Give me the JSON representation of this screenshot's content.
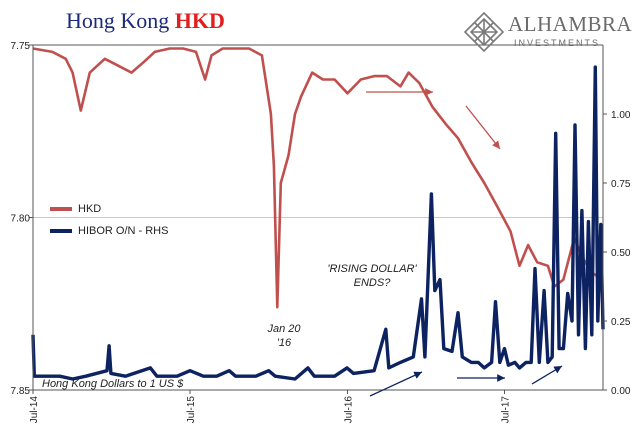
{
  "title": {
    "part1": "Hong Kong",
    "part2": "HKD"
  },
  "logo": {
    "name": "ALHAMBRA",
    "sub": "INVESTMENTS",
    "icon": "alhambra-lattice-icon"
  },
  "note": "Hong Kong Dollars to 1 US $",
  "annotations": {
    "jan20": [
      "Jan 20",
      "'16"
    ],
    "rising": [
      "'RISING DOLLAR'",
      "ENDS?"
    ]
  },
  "colors": {
    "hkd": "#c0504d",
    "hibor": "#0d2260",
    "grid": "#c8c8c8",
    "arrow_red": "#c0504d",
    "arrow_blue": "#0d2260"
  },
  "chart_data": {
    "type": "line",
    "legend": {
      "placement": "middle-left",
      "items": [
        "HKD",
        "HIBOR O/N - RHS"
      ]
    },
    "x_ticks": [
      "Jul-14",
      "Jul-15",
      "Jul-16",
      "Jul-17"
    ],
    "x_range": [
      "2014-07-01",
      "2018-02-15"
    ],
    "y_left": {
      "ticks": [
        "7.75",
        "7.80",
        "7.85"
      ],
      "range": [
        7.85,
        7.75
      ],
      "inverted": true
    },
    "y_right": {
      "ticks": [
        "0.00",
        "0.25",
        "0.50",
        "0.75",
        "1.00"
      ],
      "range": [
        0,
        1.25
      ]
    },
    "grid": "horizontal at 7.80",
    "series": [
      {
        "name": "HKD",
        "axis": "left",
        "points": [
          [
            "2014-07-01",
            7.751
          ],
          [
            "2014-08-15",
            7.752
          ],
          [
            "2014-09-15",
            7.754
          ],
          [
            "2014-10-01",
            7.758
          ],
          [
            "2014-10-20",
            7.769
          ],
          [
            "2014-11-10",
            7.758
          ],
          [
            "2014-12-15",
            7.754
          ],
          [
            "2015-01-15",
            7.756
          ],
          [
            "2015-02-15",
            7.758
          ],
          [
            "2015-03-15",
            7.755
          ],
          [
            "2015-04-10",
            7.752
          ],
          [
            "2015-05-15",
            7.751
          ],
          [
            "2015-06-15",
            7.751
          ],
          [
            "2015-07-15",
            7.752
          ],
          [
            "2015-08-05",
            7.76
          ],
          [
            "2015-08-20",
            7.753
          ],
          [
            "2015-09-15",
            7.751
          ],
          [
            "2015-10-15",
            7.751
          ],
          [
            "2015-11-15",
            7.751
          ],
          [
            "2015-12-15",
            7.753
          ],
          [
            "2016-01-05",
            7.77
          ],
          [
            "2016-01-12",
            7.785
          ],
          [
            "2016-01-20",
            7.826
          ],
          [
            "2016-01-28",
            7.79
          ],
          [
            "2016-02-15",
            7.782
          ],
          [
            "2016-03-01",
            7.77
          ],
          [
            "2016-03-15",
            7.765
          ],
          [
            "2016-04-10",
            7.758
          ],
          [
            "2016-05-05",
            7.76
          ],
          [
            "2016-06-01",
            7.76
          ],
          [
            "2016-07-01",
            7.764
          ],
          [
            "2016-08-01",
            7.76
          ],
          [
            "2016-09-01",
            7.759
          ],
          [
            "2016-10-01",
            7.759
          ],
          [
            "2016-11-01",
            7.762
          ],
          [
            "2016-11-20",
            7.758
          ],
          [
            "2016-12-15",
            7.761
          ],
          [
            "2017-01-15",
            7.768
          ],
          [
            "2017-02-15",
            7.773
          ],
          [
            "2017-03-15",
            7.777
          ],
          [
            "2017-04-15",
            7.784
          ],
          [
            "2017-05-15",
            7.79
          ],
          [
            "2017-06-15",
            7.797
          ],
          [
            "2017-07-15",
            7.804
          ],
          [
            "2017-08-05",
            7.814
          ],
          [
            "2017-08-25",
            7.808
          ],
          [
            "2017-09-15",
            7.813
          ],
          [
            "2017-10-10",
            7.814
          ],
          [
            "2017-10-25",
            7.82
          ],
          [
            "2017-11-15",
            7.818
          ],
          [
            "2017-12-10",
            7.806
          ],
          [
            "2017-12-31",
            7.812
          ],
          [
            "2018-01-20",
            7.816
          ],
          [
            "2018-02-15",
            7.818
          ]
        ]
      },
      {
        "name": "HIBOR O/N - RHS",
        "axis": "right",
        "points": [
          [
            "2014-07-01",
            0.2
          ],
          [
            "2014-07-04",
            0.05
          ],
          [
            "2014-09-01",
            0.05
          ],
          [
            "2014-10-01",
            0.04
          ],
          [
            "2014-11-01",
            0.05
          ],
          [
            "2014-12-20",
            0.07
          ],
          [
            "2014-12-25",
            0.16
          ],
          [
            "2014-12-29",
            0.06
          ],
          [
            "2015-02-01",
            0.05
          ],
          [
            "2015-03-31",
            0.08
          ],
          [
            "2015-04-15",
            0.05
          ],
          [
            "2015-06-01",
            0.05
          ],
          [
            "2015-07-01",
            0.07
          ],
          [
            "2015-08-01",
            0.05
          ],
          [
            "2015-09-01",
            0.05
          ],
          [
            "2015-09-30",
            0.07
          ],
          [
            "2015-10-15",
            0.05
          ],
          [
            "2015-12-01",
            0.05
          ],
          [
            "2015-12-31",
            0.07
          ],
          [
            "2016-01-15",
            0.05
          ],
          [
            "2016-03-01",
            0.04
          ],
          [
            "2016-03-31",
            0.08
          ],
          [
            "2016-04-15",
            0.05
          ],
          [
            "2016-06-01",
            0.05
          ],
          [
            "2016-06-30",
            0.08
          ],
          [
            "2016-07-15",
            0.06
          ],
          [
            "2016-09-01",
            0.07
          ],
          [
            "2016-09-28",
            0.22
          ],
          [
            "2016-10-05",
            0.08
          ],
          [
            "2016-11-01",
            0.1
          ],
          [
            "2016-12-01",
            0.12
          ],
          [
            "2016-12-20",
            0.33
          ],
          [
            "2016-12-28",
            0.12
          ],
          [
            "2017-01-12",
            0.71
          ],
          [
            "2017-01-20",
            0.36
          ],
          [
            "2017-02-01",
            0.4
          ],
          [
            "2017-02-10",
            0.15
          ],
          [
            "2017-03-01",
            0.14
          ],
          [
            "2017-03-15",
            0.28
          ],
          [
            "2017-03-25",
            0.12
          ],
          [
            "2017-04-15",
            0.1
          ],
          [
            "2017-05-01",
            0.1
          ],
          [
            "2017-05-15",
            0.08
          ],
          [
            "2017-06-01",
            0.1
          ],
          [
            "2017-06-10",
            0.32
          ],
          [
            "2017-06-20",
            0.1
          ],
          [
            "2017-07-01",
            0.15
          ],
          [
            "2017-07-10",
            0.09
          ],
          [
            "2017-07-25",
            0.1
          ],
          [
            "2017-08-05",
            0.08
          ],
          [
            "2017-08-20",
            0.1
          ],
          [
            "2017-09-01",
            0.1
          ],
          [
            "2017-09-10",
            0.44
          ],
          [
            "2017-09-20",
            0.1
          ],
          [
            "2017-10-01",
            0.36
          ],
          [
            "2017-10-10",
            0.1
          ],
          [
            "2017-10-20",
            0.12
          ],
          [
            "2017-10-28",
            0.93
          ],
          [
            "2017-11-05",
            0.15
          ],
          [
            "2017-11-15",
            0.15
          ],
          [
            "2017-11-25",
            0.35
          ],
          [
            "2017-12-05",
            0.25
          ],
          [
            "2017-12-12",
            0.96
          ],
          [
            "2017-12-20",
            0.2
          ],
          [
            "2017-12-28",
            0.65
          ],
          [
            "2018-01-05",
            0.15
          ],
          [
            "2018-01-12",
            0.61
          ],
          [
            "2018-01-20",
            0.2
          ],
          [
            "2018-01-28",
            1.17
          ],
          [
            "2018-02-03",
            0.25
          ],
          [
            "2018-02-10",
            0.6
          ],
          [
            "2018-02-15",
            0.22
          ]
        ]
      }
    ]
  }
}
